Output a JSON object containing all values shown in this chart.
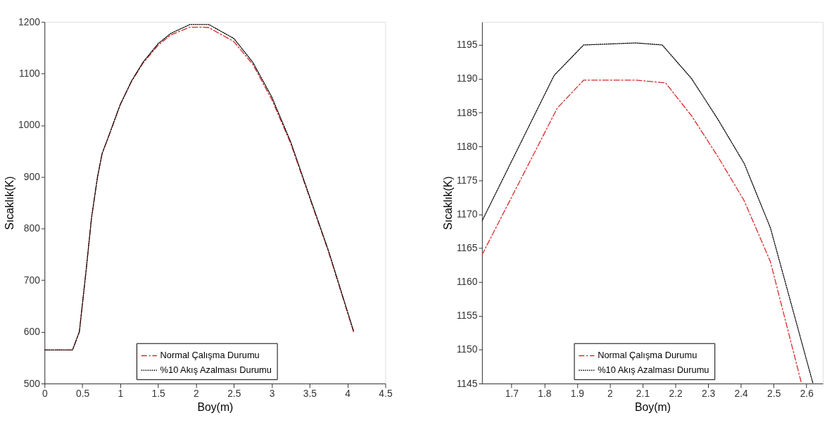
{
  "chart_data": [
    {
      "type": "line",
      "xlabel": "Boy(m)",
      "ylabel": "Sıcaklık(K)",
      "xlim": [
        0,
        4.5
      ],
      "ylim": [
        500,
        1200
      ],
      "xticks": [
        0,
        0.5,
        1,
        1.5,
        2,
        2.5,
        3,
        3.5,
        4,
        4.5
      ],
      "yticks": [
        500,
        600,
        700,
        800,
        900,
        1000,
        1100,
        1200
      ],
      "grid": false,
      "legend": "bottom",
      "marker": "none",
      "series": [
        {
          "name": "Normal Çalışma Durumu",
          "color": "#d62728",
          "line_style": "dashed",
          "x": [
            0,
            0.37,
            0.46,
            0.55,
            0.62,
            0.7,
            0.76,
            0.85,
            1.0,
            1.15,
            1.3,
            1.5,
            1.67,
            1.92,
            2.08,
            2.17,
            2.5,
            2.75,
            3.0,
            3.25,
            3.5,
            3.75,
            4.08
          ],
          "values": [
            565,
            565,
            600,
            720,
            820,
            900,
            945,
            980,
            1040,
            1085,
            1120,
            1155,
            1175,
            1190,
            1190,
            1189,
            1162,
            1118,
            1050,
            965,
            860,
            755,
            600
          ]
        },
        {
          "name": "%10 Akış Azalması Durumu",
          "color": "#000000",
          "line_style": "dotted",
          "x": [
            0,
            0.37,
            0.46,
            0.55,
            0.62,
            0.7,
            0.76,
            0.85,
            1.0,
            1.15,
            1.3,
            1.5,
            1.67,
            1.92,
            2.08,
            2.17,
            2.5,
            2.75,
            3.0,
            3.25,
            3.5,
            3.75,
            4.08
          ],
          "values": [
            565,
            565,
            600,
            720,
            820,
            900,
            945,
            980,
            1040,
            1086,
            1122,
            1158,
            1178,
            1195,
            1195,
            1195,
            1168,
            1122,
            1055,
            968,
            862,
            757,
            602
          ]
        }
      ]
    },
    {
      "type": "line",
      "xlabel": "Boy(m)",
      "ylabel": "Sıcaklık(K)",
      "xlim": [
        1.61,
        2.65
      ],
      "ylim": [
        1145,
        1198.4
      ],
      "xticks": [
        1.7,
        1.8,
        1.9,
        2,
        2.1,
        2.2,
        2.3,
        2.4,
        2.5,
        2.6
      ],
      "yticks": [
        1145,
        1150,
        1155,
        1160,
        1165,
        1170,
        1175,
        1180,
        1185,
        1190,
        1195
      ],
      "grid": false,
      "legend": "bottom",
      "marker": "none",
      "series": [
        {
          "name": "Normal Çalışma Durumu",
          "color": "#d62728",
          "line_style": "dashed",
          "x": [
            1.61,
            1.84,
            1.92,
            2.08,
            2.17,
            2.25,
            2.33,
            2.41,
            2.49,
            2.585
          ],
          "values": [
            1164,
            1185.7,
            1189.8,
            1189.8,
            1189.4,
            1184.5,
            1178.5,
            1172,
            1163,
            1145
          ]
        },
        {
          "name": "%10 Akış Azalması Durumu",
          "color": "#000000",
          "line_style": "dotted",
          "x": [
            1.61,
            1.83,
            1.92,
            2.08,
            2.16,
            2.25,
            2.33,
            2.41,
            2.49,
            2.62
          ],
          "values": [
            1169,
            1190.5,
            1195,
            1195.3,
            1195,
            1190,
            1184,
            1177.5,
            1168,
            1145
          ]
        }
      ]
    }
  ]
}
